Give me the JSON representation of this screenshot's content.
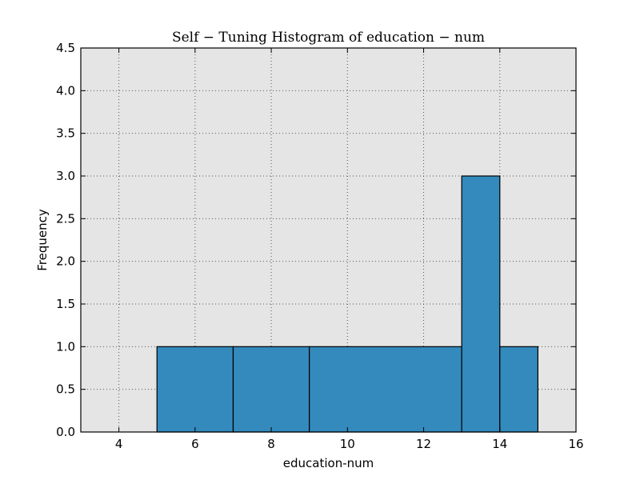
{
  "chart_data": {
    "type": "histogram",
    "title": "Self − Tuning Histogram of education − num",
    "xlabel": "education-num",
    "ylabel": "Frequency",
    "xlim": [
      3,
      16
    ],
    "ylim": [
      0,
      4.5
    ],
    "xticks": [
      4,
      6,
      8,
      10,
      12,
      14,
      16
    ],
    "yticks": [
      0.0,
      0.5,
      1.0,
      1.5,
      2.0,
      2.5,
      3.0,
      3.5,
      4.0,
      4.5
    ],
    "grid": true,
    "bins": [
      {
        "x0": 5,
        "x1": 7,
        "count": 1
      },
      {
        "x0": 7,
        "x1": 9,
        "count": 1
      },
      {
        "x0": 9,
        "x1": 13,
        "count": 1
      },
      {
        "x0": 13,
        "x1": 14,
        "count": 3
      },
      {
        "x0": 14,
        "x1": 15,
        "count": 1
      }
    ],
    "colors": {
      "bar_fill": "#348abd",
      "bar_edge": "#000000",
      "plot_background": "#e5e5e5",
      "grid": "#555555"
    }
  }
}
